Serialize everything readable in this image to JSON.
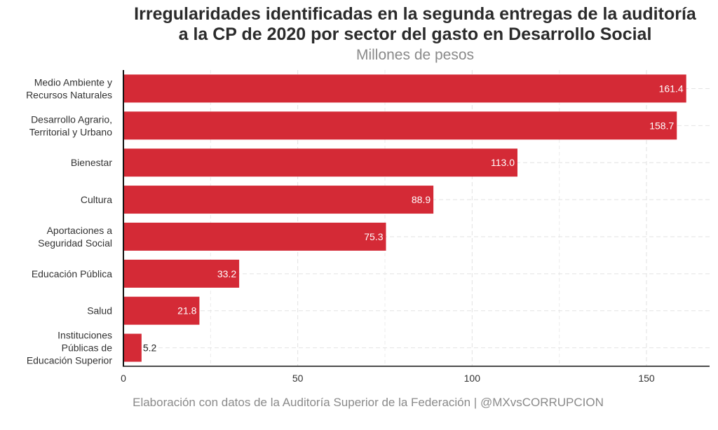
{
  "title_line1": "Irregularidades identificadas en la segunda entregas de la auditoría",
  "title_line2": "a la CP de 2020 por sector del gasto en Desarrollo Social",
  "subtitle": "Millones de pesos",
  "caption": "Elaboración con datos de la Auditoría Superior de la Federación | @MXvsCORRUPCION",
  "bar_color": "#d42a36",
  "chart_data": {
    "type": "bar",
    "orientation": "horizontal",
    "title": "Irregularidades identificadas en la segunda entregas de la auditoría a la CP de 2020 por sector del gasto en Desarrollo Social",
    "subtitle": "Millones de pesos",
    "categories": [
      [
        "Medio Ambiente y",
        "Recursos Naturales"
      ],
      [
        "Desarrollo Agrario,",
        "Territorial y Urbano"
      ],
      [
        "Bienestar"
      ],
      [
        "Cultura"
      ],
      [
        "Aportaciones a",
        "Seguridad Social"
      ],
      [
        "Educación Pública"
      ],
      [
        "Salud"
      ],
      [
        "Instituciones",
        "Públicas de",
        "Educación Superior"
      ]
    ],
    "values": [
      161.4,
      158.7,
      113.0,
      88.9,
      75.3,
      33.2,
      21.8,
      5.2
    ],
    "value_labels": [
      "161.4",
      "158.7",
      "113.0",
      "88.9",
      "75.3",
      "33.2",
      "21.8",
      "5.2"
    ],
    "xticks": [
      0,
      50,
      100,
      150
    ],
    "xlim": [
      0,
      167
    ],
    "xlabel": "",
    "ylabel": "",
    "grid": true,
    "legend": "none"
  }
}
